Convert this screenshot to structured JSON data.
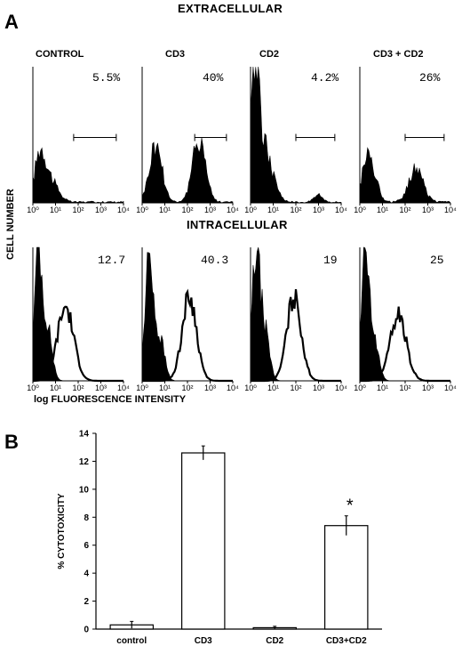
{
  "panel_a": {
    "letter": "A",
    "extracellular_title": "EXTRACELLULAR",
    "intracellular_title": "INTRACELLULAR",
    "y_label": "CELL NUMBER",
    "x_label": "log FLUORESCENCE INTENSITY",
    "x_ticks": [
      "10⁰",
      "10¹",
      "10²",
      "10³",
      "10⁴"
    ],
    "conditions": [
      "CONTROL",
      "CD3",
      "CD2",
      "CD3 + CD2"
    ],
    "extracellular_values": [
      "5.5%",
      "40%",
      "4.2%",
      "26%"
    ],
    "intracellular_values": [
      "12.7",
      "40.3",
      "19",
      "25"
    ]
  },
  "panel_b": {
    "letter": "B"
  },
  "chart_data": [
    {
      "type": "bar",
      "categories": [
        "control",
        "CD3",
        "CD2",
        "CD3+CD2"
      ],
      "values": [
        0.3,
        12.6,
        0.1,
        7.4
      ],
      "errors": [
        0.25,
        0.5,
        0.1,
        0.7
      ],
      "ylabel": "% CYTOTOXICITY",
      "xlabel": "",
      "ylim": [
        0,
        14
      ],
      "yticks": [
        0,
        2,
        4,
        6,
        8,
        10,
        12,
        14
      ],
      "annotation": "*",
      "annotation_category": "CD3+CD2",
      "bar_fill": "#ffffff",
      "bar_stroke": "#000000"
    }
  ]
}
